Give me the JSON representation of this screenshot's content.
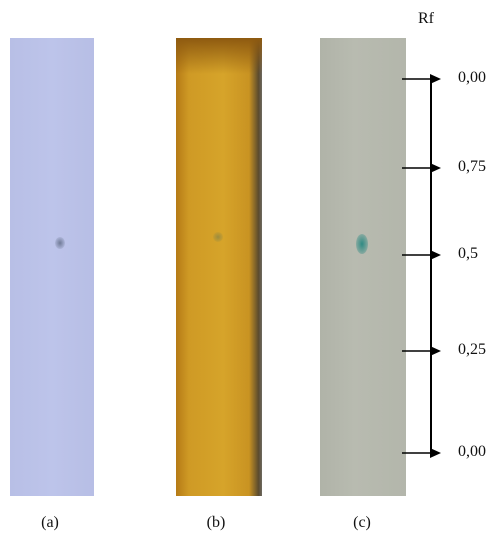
{
  "figure": {
    "rf_title": "Rf",
    "plates": [
      {
        "id": "a",
        "label": "(a)",
        "color": "#bcc3e8",
        "spot_color": "#6f7a96"
      },
      {
        "id": "b",
        "label": "(b)",
        "color": "#d2a02a",
        "spot_color": "#9c8c3e"
      },
      {
        "id": "c",
        "label": "(c)",
        "color": "#b6b9ae",
        "spot_color": "#2f8a83"
      }
    ],
    "rf_scale": [
      {
        "label": "0,00"
      },
      {
        "label": "0,75"
      },
      {
        "label": "0,5"
      },
      {
        "label": "0,25"
      },
      {
        "label": "0,00"
      }
    ]
  }
}
